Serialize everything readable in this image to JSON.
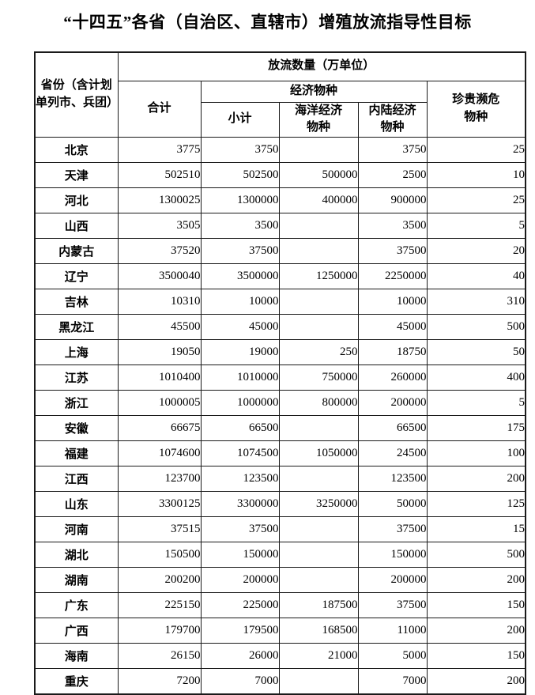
{
  "title": "“十四五”各省（自治区、直辖市）增殖放流指导性目标",
  "table": {
    "header": {
      "province": "省份（含计划单列市、兵团）",
      "quantity_group": "放流数量（万单位）",
      "total": "合计",
      "economic_group": "经济物种",
      "subtotal": "小计",
      "marine": "海洋经济物种",
      "inland": "内陆经济物种",
      "rare": "珍贵濒危物种"
    },
    "rows": [
      {
        "province": "北京",
        "total": "3775",
        "subtotal": "3750",
        "marine": "",
        "inland": "3750",
        "rare": "25"
      },
      {
        "province": "天津",
        "total": "502510",
        "subtotal": "502500",
        "marine": "500000",
        "inland": "2500",
        "rare": "10"
      },
      {
        "province": "河北",
        "total": "1300025",
        "subtotal": "1300000",
        "marine": "400000",
        "inland": "900000",
        "rare": "25"
      },
      {
        "province": "山西",
        "total": "3505",
        "subtotal": "3500",
        "marine": "",
        "inland": "3500",
        "rare": "5"
      },
      {
        "province": "内蒙古",
        "total": "37520",
        "subtotal": "37500",
        "marine": "",
        "inland": "37500",
        "rare": "20"
      },
      {
        "province": "辽宁",
        "total": "3500040",
        "subtotal": "3500000",
        "marine": "1250000",
        "inland": "2250000",
        "rare": "40"
      },
      {
        "province": "吉林",
        "total": "10310",
        "subtotal": "10000",
        "marine": "",
        "inland": "10000",
        "rare": "310"
      },
      {
        "province": "黑龙江",
        "total": "45500",
        "subtotal": "45000",
        "marine": "",
        "inland": "45000",
        "rare": "500"
      },
      {
        "province": "上海",
        "total": "19050",
        "subtotal": "19000",
        "marine": "250",
        "inland": "18750",
        "rare": "50"
      },
      {
        "province": "江苏",
        "total": "1010400",
        "subtotal": "1010000",
        "marine": "750000",
        "inland": "260000",
        "rare": "400"
      },
      {
        "province": "浙江",
        "total": "1000005",
        "subtotal": "1000000",
        "marine": "800000",
        "inland": "200000",
        "rare": "5"
      },
      {
        "province": "安徽",
        "total": "66675",
        "subtotal": "66500",
        "marine": "",
        "inland": "66500",
        "rare": "175"
      },
      {
        "province": "福建",
        "total": "1074600",
        "subtotal": "1074500",
        "marine": "1050000",
        "inland": "24500",
        "rare": "100"
      },
      {
        "province": "江西",
        "total": "123700",
        "subtotal": "123500",
        "marine": "",
        "inland": "123500",
        "rare": "200"
      },
      {
        "province": "山东",
        "total": "3300125",
        "subtotal": "3300000",
        "marine": "3250000",
        "inland": "50000",
        "rare": "125"
      },
      {
        "province": "河南",
        "total": "37515",
        "subtotal": "37500",
        "marine": "",
        "inland": "37500",
        "rare": "15"
      },
      {
        "province": "湖北",
        "total": "150500",
        "subtotal": "150000",
        "marine": "",
        "inland": "150000",
        "rare": "500"
      },
      {
        "province": "湖南",
        "total": "200200",
        "subtotal": "200000",
        "marine": "",
        "inland": "200000",
        "rare": "200"
      },
      {
        "province": "广东",
        "total": "225150",
        "subtotal": "225000",
        "marine": "187500",
        "inland": "37500",
        "rare": "150"
      },
      {
        "province": "广西",
        "total": "179700",
        "subtotal": "179500",
        "marine": "168500",
        "inland": "11000",
        "rare": "200"
      },
      {
        "province": "海南",
        "total": "26150",
        "subtotal": "26000",
        "marine": "21000",
        "inland": "5000",
        "rare": "150"
      },
      {
        "province": "重庆",
        "total": "7200",
        "subtotal": "7000",
        "marine": "",
        "inland": "7000",
        "rare": "200"
      }
    ]
  }
}
